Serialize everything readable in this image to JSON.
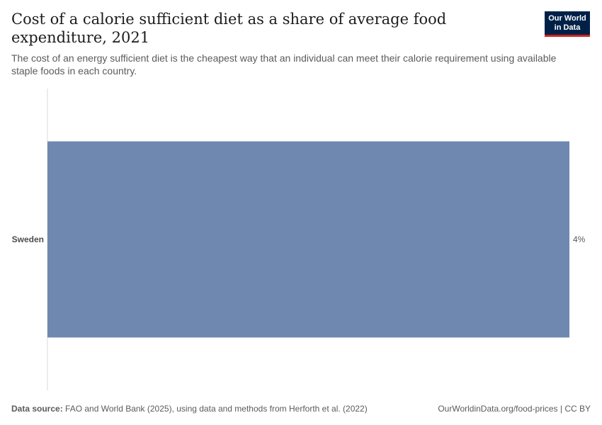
{
  "header": {
    "title": "Cost of a calorie sufficient diet as a share of average food expenditure, 2021",
    "subtitle": "The cost of an energy sufficient diet is the cheapest way that an individual can meet their calorie requirement using available staple foods in each country."
  },
  "logo": {
    "line1": "Our World",
    "line2": "in Data"
  },
  "chart_data": {
    "type": "bar",
    "orientation": "horizontal",
    "categories": [
      "Sweden"
    ],
    "values": [
      4
    ],
    "value_labels": [
      "4%"
    ],
    "unit": "%",
    "title": "Cost of a calorie sufficient diet as a share of average food expenditure, 2021",
    "xlim": [
      0,
      4
    ],
    "grid": false,
    "bar_color": "#6f88b0"
  },
  "footer": {
    "source_label": "Data source:",
    "source_text": "FAO and World Bank (2025), using data and methods from Herforth et al. (2022)",
    "url_text": "OurWorldinData.org/food-prices | CC BY"
  }
}
